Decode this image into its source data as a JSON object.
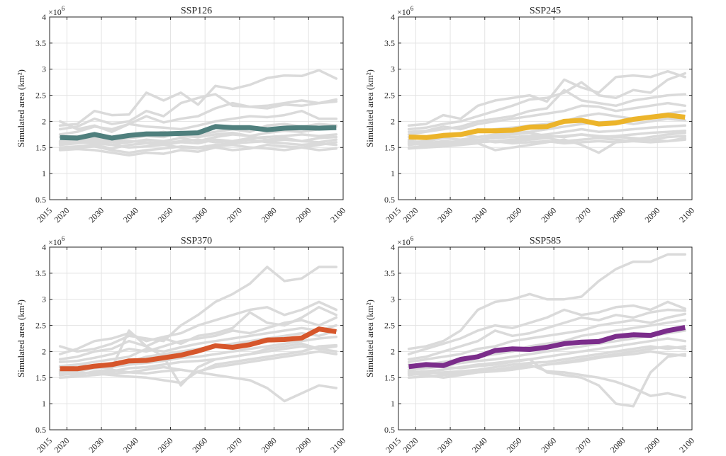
{
  "chart_data": [
    {
      "type": "line",
      "title": "SSP126",
      "ylabel": "Simulated area (km²)",
      "y_multiplier": "×10",
      "y_exponent": "6",
      "xlim": [
        2015,
        2100
      ],
      "ylim": [
        0.5,
        4
      ],
      "xticks": [
        "2015",
        "2020",
        "2030",
        "2040",
        "2050",
        "2060",
        "2070",
        "2080",
        "2090",
        "2100"
      ],
      "yticks": [
        "0.5",
        "1",
        "1.5",
        "2",
        "2.5",
        "3",
        "3.5",
        "4"
      ],
      "grid": true,
      "x": [
        2018,
        2023,
        2028,
        2033,
        2038,
        2043,
        2048,
        2053,
        2058,
        2063,
        2068,
        2073,
        2078,
        2083,
        2088,
        2093,
        2098
      ],
      "mean_color": "#4f7f7d",
      "ensemble_color": "#dadada",
      "mean_series": [
        1.69,
        1.68,
        1.75,
        1.68,
        1.73,
        1.76,
        1.76,
        1.77,
        1.78,
        1.9,
        1.88,
        1.88,
        1.84,
        1.87,
        1.88,
        1.87,
        1.88
      ],
      "model_series": [
        [
          1.92,
          1.95,
          2.2,
          2.12,
          2.13,
          2.55,
          2.4,
          2.55,
          2.32,
          2.68,
          2.62,
          2.7,
          2.83,
          2.88,
          2.87,
          2.98,
          2.82
        ],
        [
          1.85,
          1.9,
          2.05,
          1.95,
          2.0,
          2.2,
          2.1,
          2.35,
          2.45,
          2.52,
          2.3,
          2.28,
          2.25,
          2.32,
          2.3,
          2.35,
          2.42
        ],
        [
          1.75,
          1.8,
          1.9,
          1.85,
          1.95,
          2.1,
          1.98,
          2.05,
          2.1,
          2.25,
          2.35,
          2.28,
          2.3,
          2.35,
          2.4,
          2.35,
          2.38
        ],
        [
          2.0,
          1.85,
          1.92,
          1.8,
          1.95,
          1.9,
          1.88,
          1.85,
          1.92,
          2.0,
          2.05,
          2.1,
          2.08,
          2.12,
          2.2,
          2.05,
          2.05
        ],
        [
          1.6,
          1.65,
          1.7,
          1.62,
          1.68,
          1.72,
          1.7,
          1.78,
          1.75,
          1.8,
          1.85,
          1.8,
          1.92,
          1.95,
          1.9,
          1.95,
          1.92
        ],
        [
          1.55,
          1.58,
          1.62,
          1.55,
          1.6,
          1.65,
          1.62,
          1.68,
          1.62,
          1.7,
          1.75,
          1.72,
          1.78,
          1.82,
          1.8,
          1.85,
          1.9
        ],
        [
          1.5,
          1.52,
          1.55,
          1.48,
          1.55,
          1.58,
          1.55,
          1.6,
          1.58,
          1.65,
          1.62,
          1.68,
          1.7,
          1.72,
          1.75,
          1.72,
          1.75
        ],
        [
          1.48,
          1.5,
          1.52,
          1.45,
          1.4,
          1.45,
          1.48,
          1.52,
          1.5,
          1.55,
          1.58,
          1.6,
          1.62,
          1.65,
          1.62,
          1.68,
          1.7
        ],
        [
          1.45,
          1.47,
          1.45,
          1.4,
          1.35,
          1.4,
          1.38,
          1.45,
          1.42,
          1.5,
          1.45,
          1.48,
          1.55,
          1.52,
          1.5,
          1.55,
          1.6
        ],
        [
          1.62,
          1.6,
          1.58,
          1.55,
          1.5,
          1.52,
          1.55,
          1.5,
          1.48,
          1.52,
          1.55,
          1.5,
          1.48,
          1.45,
          1.5,
          1.45,
          1.48
        ],
        [
          1.7,
          1.72,
          1.68,
          1.65,
          1.7,
          1.75,
          1.8,
          1.72,
          1.7,
          1.75,
          1.78,
          1.72,
          1.65,
          1.68,
          1.62,
          1.6,
          1.65
        ],
        [
          1.58,
          1.62,
          1.65,
          1.6,
          1.62,
          1.6,
          1.58,
          1.62,
          1.65,
          1.6,
          1.62,
          1.65,
          1.6,
          1.58,
          1.55,
          1.58,
          1.55
        ]
      ]
    },
    {
      "type": "line",
      "title": "SSP245",
      "ylabel": "Simulated area (km²)",
      "y_multiplier": "×10",
      "y_exponent": "6",
      "xlim": [
        2015,
        2100
      ],
      "ylim": [
        0.5,
        4
      ],
      "xticks": [
        "2015",
        "2020",
        "2030",
        "2040",
        "2050",
        "2060",
        "2070",
        "2080",
        "2090",
        "2100"
      ],
      "yticks": [
        "0.5",
        "1",
        "1.5",
        "2",
        "2.5",
        "3",
        "3.5",
        "4"
      ],
      "grid": true,
      "x": [
        2018,
        2023,
        2028,
        2033,
        2038,
        2043,
        2048,
        2053,
        2058,
        2063,
        2068,
        2073,
        2078,
        2083,
        2088,
        2093,
        2098
      ],
      "mean_color": "#ecb42a",
      "ensemble_color": "#dadada",
      "mean_series": [
        1.7,
        1.69,
        1.73,
        1.75,
        1.82,
        1.82,
        1.83,
        1.89,
        1.9,
        2.0,
        2.02,
        1.95,
        1.97,
        2.04,
        2.08,
        2.12,
        2.08
      ],
      "model_series": [
        [
          1.92,
          1.95,
          2.12,
          2.05,
          2.3,
          2.4,
          2.45,
          2.5,
          2.38,
          2.8,
          2.65,
          2.55,
          2.85,
          2.88,
          2.85,
          2.96,
          2.85
        ],
        [
          1.85,
          1.88,
          1.95,
          2.0,
          2.1,
          2.2,
          2.3,
          2.42,
          2.45,
          2.55,
          2.75,
          2.5,
          2.45,
          2.6,
          2.55,
          2.8,
          2.92
        ],
        [
          1.75,
          1.8,
          1.85,
          1.9,
          2.0,
          2.05,
          2.1,
          2.2,
          2.25,
          2.6,
          2.4,
          2.35,
          2.3,
          2.4,
          2.45,
          2.5,
          2.52
        ],
        [
          1.8,
          1.82,
          1.9,
          1.85,
          1.95,
          2.0,
          2.05,
          2.1,
          2.15,
          2.2,
          2.3,
          2.28,
          2.2,
          2.25,
          2.3,
          2.35,
          2.3
        ],
        [
          1.65,
          1.7,
          1.75,
          1.72,
          1.8,
          1.85,
          1.88,
          1.92,
          1.95,
          2.0,
          2.1,
          2.15,
          2.1,
          2.05,
          2.1,
          2.15,
          2.2
        ],
        [
          1.6,
          1.62,
          1.68,
          1.65,
          1.7,
          1.75,
          1.78,
          1.8,
          1.85,
          1.9,
          1.95,
          1.98,
          2.0,
          1.95,
          2.0,
          2.05,
          2.02
        ],
        [
          1.55,
          1.58,
          1.62,
          1.6,
          1.65,
          1.68,
          1.7,
          1.72,
          1.75,
          1.8,
          1.85,
          1.8,
          1.82,
          1.85,
          1.88,
          1.9,
          1.92
        ],
        [
          1.5,
          1.52,
          1.55,
          1.58,
          1.6,
          1.62,
          1.65,
          1.68,
          1.7,
          1.72,
          1.75,
          1.7,
          1.72,
          1.75,
          1.78,
          1.8,
          1.82
        ],
        [
          1.48,
          1.5,
          1.52,
          1.55,
          1.58,
          1.45,
          1.5,
          1.55,
          1.6,
          1.65,
          1.55,
          1.4,
          1.6,
          1.65,
          1.7,
          1.75,
          1.78
        ],
        [
          1.62,
          1.6,
          1.58,
          1.62,
          1.6,
          1.62,
          1.58,
          1.6,
          1.62,
          1.58,
          1.6,
          1.62,
          1.6,
          1.62,
          1.65,
          1.62,
          1.68
        ],
        [
          1.7,
          1.68,
          1.72,
          1.75,
          1.7,
          1.72,
          1.75,
          1.78,
          1.72,
          1.7,
          1.75,
          1.72,
          1.7,
          1.68,
          1.65,
          1.7,
          1.72
        ],
        [
          1.58,
          1.55,
          1.6,
          1.62,
          1.65,
          1.6,
          1.62,
          1.65,
          1.68,
          1.62,
          1.65,
          1.68,
          1.65,
          1.62,
          1.6,
          1.62,
          1.65
        ]
      ]
    },
    {
      "type": "line",
      "title": "SSP370",
      "ylabel": "Simulated area (km²)",
      "y_multiplier": "×10",
      "y_exponent": "6",
      "xlim": [
        2015,
        2100
      ],
      "ylim": [
        0.5,
        4
      ],
      "xticks": [
        "2015",
        "2020",
        "2030",
        "2040",
        "2050",
        "2060",
        "2070",
        "2080",
        "2090",
        "2100"
      ],
      "yticks": [
        "0.5",
        "1",
        "1.5",
        "2",
        "2.5",
        "3",
        "3.5",
        "4"
      ],
      "grid": true,
      "x": [
        2018,
        2023,
        2028,
        2033,
        2038,
        2043,
        2048,
        2053,
        2058,
        2063,
        2068,
        2073,
        2078,
        2083,
        2088,
        2093,
        2098
      ],
      "mean_color": "#d6562b",
      "ensemble_color": "#dadada",
      "mean_series": [
        1.67,
        1.67,
        1.72,
        1.75,
        1.82,
        1.83,
        1.88,
        1.93,
        2.01,
        2.11,
        2.08,
        2.13,
        2.22,
        2.23,
        2.26,
        2.43,
        2.38
      ],
      "model_series": [
        [
          2.1,
          2.0,
          2.05,
          2.15,
          2.3,
          2.25,
          2.2,
          2.5,
          2.7,
          2.95,
          3.1,
          3.3,
          3.62,
          3.35,
          3.4,
          3.62,
          3.62
        ],
        [
          1.95,
          2.05,
          2.2,
          2.25,
          2.35,
          2.2,
          2.28,
          2.35,
          2.5,
          2.6,
          2.7,
          2.8,
          2.85,
          2.7,
          2.8,
          2.95,
          2.8
        ],
        [
          1.85,
          1.9,
          2.0,
          2.05,
          2.2,
          2.1,
          2.25,
          2.15,
          2.3,
          2.35,
          2.45,
          2.75,
          2.55,
          2.5,
          2.65,
          2.85,
          2.7
        ],
        [
          1.8,
          1.82,
          1.88,
          1.95,
          2.05,
          2.0,
          2.1,
          2.2,
          2.25,
          2.3,
          2.4,
          2.35,
          2.45,
          2.55,
          2.6,
          2.5,
          2.65
        ],
        [
          1.7,
          1.75,
          1.8,
          1.85,
          1.9,
          2.05,
          2.0,
          2.08,
          2.15,
          2.2,
          2.25,
          2.3,
          2.35,
          2.4,
          2.45,
          2.4,
          2.5
        ],
        [
          1.65,
          1.68,
          1.72,
          1.78,
          1.8,
          1.9,
          1.95,
          2.0,
          2.05,
          2.1,
          2.15,
          2.2,
          2.25,
          2.3,
          2.35,
          2.3,
          2.4
        ],
        [
          1.6,
          1.62,
          1.68,
          1.7,
          1.75,
          1.78,
          1.82,
          1.88,
          1.9,
          1.95,
          2.0,
          2.05,
          2.1,
          2.15,
          2.2,
          2.25,
          2.28
        ],
        [
          1.55,
          1.58,
          1.6,
          1.62,
          1.68,
          1.7,
          1.75,
          1.8,
          1.82,
          1.85,
          1.9,
          1.95,
          2.0,
          2.05,
          2.1,
          2.05,
          2.0
        ],
        [
          1.5,
          1.52,
          1.55,
          1.58,
          1.6,
          1.65,
          1.7,
          1.65,
          1.6,
          1.75,
          1.8,
          1.85,
          1.9,
          1.95,
          2.0,
          2.1,
          2.12
        ],
        [
          1.62,
          1.6,
          1.58,
          1.55,
          1.52,
          1.5,
          1.45,
          1.4,
          1.62,
          1.7,
          1.75,
          1.8,
          1.85,
          1.9,
          1.95,
          2.0,
          1.95
        ],
        [
          1.58,
          1.55,
          1.62,
          1.65,
          1.6,
          1.58,
          1.62,
          1.65,
          1.6,
          1.55,
          1.5,
          1.45,
          1.3,
          1.05,
          1.2,
          1.35,
          1.3
        ],
        [
          1.72,
          1.75,
          1.7,
          1.68,
          2.4,
          2.1,
          1.9,
          1.35,
          1.7,
          1.85,
          1.9,
          1.95,
          2.05,
          2.1,
          2.15,
          2.05,
          2.1
        ]
      ]
    },
    {
      "type": "line",
      "title": "SSP585",
      "ylabel": "Simulated area (km²)",
      "y_multiplier": "×10",
      "y_exponent": "6",
      "xlim": [
        2015,
        2100
      ],
      "ylim": [
        0.5,
        4
      ],
      "xticks": [
        "2015",
        "2020",
        "2030",
        "2040",
        "2050",
        "2060",
        "2070",
        "2080",
        "2090",
        "2100"
      ],
      "yticks": [
        "0.5",
        "1",
        "1.5",
        "2",
        "2.5",
        "3",
        "3.5",
        "4"
      ],
      "grid": true,
      "x": [
        2018,
        2023,
        2028,
        2033,
        2038,
        2043,
        2048,
        2053,
        2058,
        2063,
        2068,
        2073,
        2078,
        2083,
        2088,
        2093,
        2098
      ],
      "mean_color": "#7b2d8b",
      "ensemble_color": "#dadada",
      "mean_series": [
        1.71,
        1.75,
        1.73,
        1.85,
        1.9,
        2.02,
        2.05,
        2.04,
        2.08,
        2.15,
        2.18,
        2.19,
        2.29,
        2.32,
        2.31,
        2.4,
        2.46
      ],
      "model_series": [
        [
          2.05,
          2.1,
          2.2,
          2.4,
          2.8,
          2.95,
          3.0,
          3.1,
          3.0,
          3.0,
          3.05,
          3.35,
          3.58,
          3.72,
          3.72,
          3.86,
          3.86
        ],
        [
          1.95,
          2.05,
          2.15,
          2.25,
          2.4,
          2.5,
          2.45,
          2.55,
          2.65,
          2.8,
          2.7,
          2.75,
          2.85,
          2.88,
          2.8,
          2.95,
          2.82
        ],
        [
          1.85,
          1.9,
          2.0,
          2.1,
          2.2,
          2.4,
          2.3,
          2.35,
          2.45,
          2.55,
          2.65,
          2.6,
          2.7,
          2.65,
          2.75,
          2.8,
          2.78
        ],
        [
          1.8,
          1.85,
          1.9,
          1.95,
          2.05,
          2.1,
          2.2,
          2.25,
          2.3,
          2.35,
          2.4,
          2.5,
          2.55,
          2.6,
          2.55,
          2.65,
          2.72
        ],
        [
          1.7,
          1.75,
          1.8,
          1.85,
          1.9,
          1.95,
          2.0,
          2.1,
          2.15,
          2.2,
          2.3,
          2.35,
          2.4,
          2.45,
          2.5,
          2.55,
          2.6
        ],
        [
          1.65,
          1.68,
          1.72,
          1.78,
          1.82,
          1.85,
          1.9,
          1.95,
          2.0,
          2.05,
          2.1,
          2.15,
          2.2,
          2.25,
          2.3,
          2.35,
          2.4
        ],
        [
          1.6,
          1.62,
          1.65,
          1.7,
          1.75,
          1.78,
          1.82,
          1.85,
          1.9,
          1.95,
          2.0,
          2.05,
          2.1,
          2.15,
          2.2,
          2.25,
          2.2
        ],
        [
          1.55,
          1.58,
          1.6,
          1.62,
          1.65,
          1.7,
          1.75,
          1.78,
          1.8,
          1.85,
          1.9,
          1.95,
          2.0,
          2.05,
          2.1,
          2.05,
          2.1
        ],
        [
          1.5,
          1.52,
          1.55,
          1.58,
          1.62,
          1.65,
          1.68,
          1.7,
          1.75,
          1.78,
          1.82,
          1.88,
          1.92,
          1.95,
          2.0,
          1.95,
          1.92
        ],
        [
          1.62,
          1.6,
          1.58,
          1.6,
          1.62,
          1.65,
          1.7,
          1.75,
          1.62,
          1.6,
          1.55,
          1.5,
          1.42,
          1.3,
          1.15,
          1.2,
          1.12
        ],
        [
          1.58,
          1.55,
          1.5,
          1.55,
          1.6,
          1.62,
          1.65,
          1.7,
          1.75,
          1.8,
          1.85,
          1.9,
          1.95,
          2.0,
          2.05,
          2.1,
          2.05
        ],
        [
          1.75,
          1.72,
          1.7,
          1.68,
          1.72,
          1.75,
          1.8,
          1.85,
          1.6,
          1.55,
          1.5,
          1.35,
          1.0,
          0.95,
          1.6,
          1.9,
          1.95
        ]
      ]
    }
  ]
}
